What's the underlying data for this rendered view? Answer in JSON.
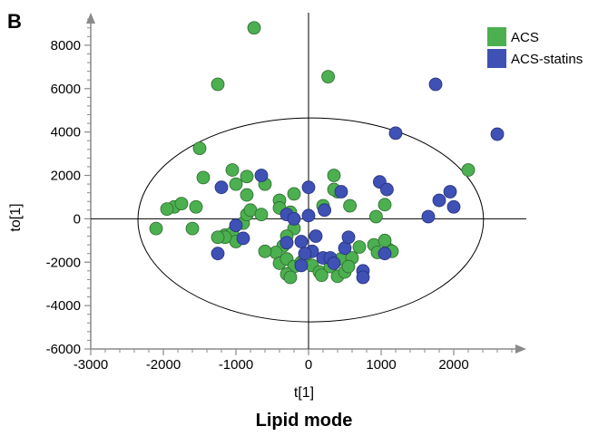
{
  "panel_label": "B",
  "caption": "Lipid mode",
  "chart_data": {
    "type": "scatter",
    "xlabel": "t[1]",
    "ylabel": "to[1]",
    "xlim": [
      -3000,
      3000
    ],
    "ylim": [
      -6000,
      9500
    ],
    "x_ticks": [
      -3000,
      -2000,
      -1000,
      0,
      1000,
      2000
    ],
    "y_ticks": [
      -6000,
      -4000,
      -2000,
      0,
      2000,
      4000,
      6000,
      8000
    ],
    "x_tick_labels": [
      "-3000",
      "-2000",
      "-1000",
      "0",
      "1000",
      "2000"
    ],
    "y_tick_labels": [
      "-6000",
      "-4000",
      "-2000",
      "0",
      "2000",
      "4000",
      "6000",
      "8000"
    ],
    "ellipse": {
      "cx": 30,
      "cy": -50,
      "rx": 2380,
      "ry": 4700
    },
    "legend": {
      "position": "top-right"
    },
    "series": [
      {
        "name": "ACS",
        "color": "#4caf50",
        "points": [
          [
            -750,
            8800
          ],
          [
            -1250,
            6200
          ],
          [
            270,
            6550
          ],
          [
            -1500,
            3250
          ],
          [
            2200,
            2250
          ],
          [
            -1450,
            1900
          ],
          [
            -1050,
            2250
          ],
          [
            -1000,
            1600
          ],
          [
            -850,
            1950
          ],
          [
            -600,
            1600
          ],
          [
            -850,
            1100
          ],
          [
            -400,
            850
          ],
          [
            -200,
            1150
          ],
          [
            350,
            2000
          ],
          [
            400,
            1250
          ],
          [
            350,
            1350
          ],
          [
            570,
            600
          ],
          [
            200,
            600
          ],
          [
            930,
            100
          ],
          [
            1050,
            650
          ],
          [
            -1850,
            550
          ],
          [
            -1750,
            700
          ],
          [
            -1550,
            550
          ],
          [
            -1950,
            450
          ],
          [
            -2100,
            -450
          ],
          [
            -1600,
            -450
          ],
          [
            -1150,
            -750
          ],
          [
            -1050,
            -650
          ],
          [
            -1000,
            -1050
          ],
          [
            -900,
            -200
          ],
          [
            -850,
            200
          ],
          [
            -800,
            400
          ],
          [
            -650,
            200
          ],
          [
            -400,
            500
          ],
          [
            -250,
            300
          ],
          [
            -200,
            -450
          ],
          [
            -300,
            -800
          ],
          [
            -350,
            -1250
          ],
          [
            -450,
            -1550
          ],
          [
            -600,
            -1500
          ],
          [
            -400,
            -2050
          ],
          [
            -300,
            -1850
          ],
          [
            -200,
            -2200
          ],
          [
            -100,
            -2000
          ],
          [
            -50,
            -1800
          ],
          [
            -300,
            -2550
          ],
          [
            -250,
            -2700
          ],
          [
            50,
            -2150
          ],
          [
            150,
            -2450
          ],
          [
            180,
            -2600
          ],
          [
            300,
            -2200
          ],
          [
            350,
            -1950
          ],
          [
            450,
            -1850
          ],
          [
            400,
            -2650
          ],
          [
            500,
            -2450
          ],
          [
            600,
            -1800
          ],
          [
            550,
            -2200
          ],
          [
            700,
            -1300
          ],
          [
            900,
            -1200
          ],
          [
            950,
            -1550
          ],
          [
            1100,
            -1400
          ],
          [
            1150,
            -1500
          ],
          [
            -1150,
            -850
          ],
          [
            -1250,
            -850
          ],
          [
            1050,
            -1000
          ]
        ]
      },
      {
        "name": "ACS-statins",
        "color": "#3f51b5",
        "points": [
          [
            1750,
            6200
          ],
          [
            1200,
            3950
          ],
          [
            2600,
            3900
          ],
          [
            -650,
            2000
          ],
          [
            -1200,
            1450
          ],
          [
            0,
            1450
          ],
          [
            450,
            1250
          ],
          [
            980,
            1700
          ],
          [
            1080,
            1350
          ],
          [
            1950,
            1250
          ],
          [
            1800,
            850
          ],
          [
            2000,
            550
          ],
          [
            1650,
            100
          ],
          [
            -300,
            200
          ],
          [
            -200,
            0
          ],
          [
            0,
            150
          ],
          [
            220,
            400
          ],
          [
            -900,
            -900
          ],
          [
            -1000,
            -300
          ],
          [
            -1250,
            -1600
          ],
          [
            -300,
            -1100
          ],
          [
            -100,
            -1050
          ],
          [
            100,
            -800
          ],
          [
            50,
            -1500
          ],
          [
            -50,
            -1600
          ],
          [
            -100,
            -2150
          ],
          [
            200,
            -1800
          ],
          [
            300,
            -1800
          ],
          [
            350,
            -2050
          ],
          [
            500,
            -1350
          ],
          [
            550,
            -850
          ],
          [
            750,
            -2400
          ],
          [
            750,
            -2700
          ],
          [
            1050,
            -1600
          ]
        ]
      }
    ]
  }
}
